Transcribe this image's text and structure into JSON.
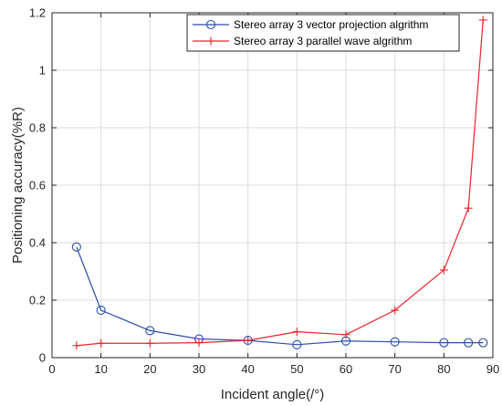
{
  "chart_data": {
    "type": "line",
    "title": "",
    "xlabel": "Incident angle(/°)",
    "ylabel": "Positioning accuracy(%R)",
    "xlim": [
      0,
      90
    ],
    "ylim": [
      0,
      1.2
    ],
    "xticks": [
      0,
      10,
      20,
      30,
      40,
      50,
      60,
      70,
      80,
      90
    ],
    "yticks": [
      0,
      0.2,
      0.4,
      0.6,
      0.8,
      1,
      1.2
    ],
    "ytick_labels": [
      "0",
      "0.2",
      "0.4",
      "0.6",
      "0.8",
      "1",
      "1.2"
    ],
    "grid": true,
    "legend_position": "top-right",
    "series": [
      {
        "name": "Stereo array 3 vector projection algrithm",
        "color": "#2b4fa8",
        "marker": "circle",
        "x": [
          5,
          10,
          20,
          30,
          40,
          50,
          60,
          70,
          80,
          85,
          88
        ],
        "y": [
          0.385,
          0.165,
          0.094,
          0.065,
          0.06,
          0.045,
          0.058,
          0.055,
          0.052,
          0.052,
          0.052
        ]
      },
      {
        "name": "Stereo array 3 parallel wave algrithm",
        "color": "#e8242b",
        "marker": "plus",
        "x": [
          5,
          10,
          20,
          30,
          40,
          50,
          60,
          70,
          80,
          85,
          88
        ],
        "y": [
          0.042,
          0.05,
          0.05,
          0.052,
          0.06,
          0.09,
          0.08,
          0.165,
          0.305,
          0.52,
          1.175
        ]
      }
    ]
  }
}
